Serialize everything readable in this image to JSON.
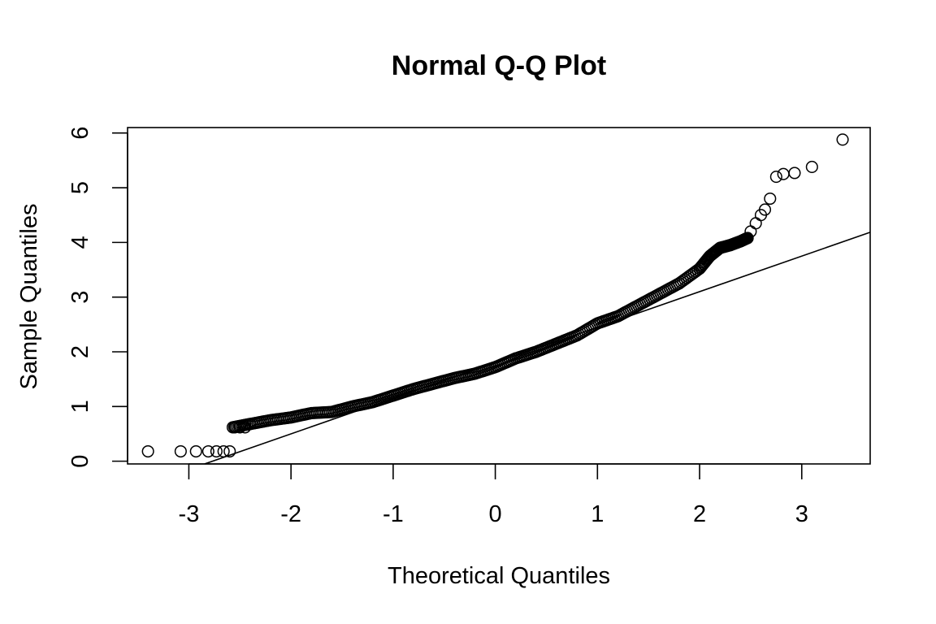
{
  "chart_data": {
    "type": "scatter",
    "title": "Normal Q-Q Plot",
    "xlabel": "Theoretical Quantiles",
    "ylabel": "Sample Quantiles",
    "xlim": [
      -3.6,
      3.67
    ],
    "ylim": [
      -0.05,
      6.1
    ],
    "xticks": [
      -3,
      -2,
      -1,
      0,
      1,
      2,
      3
    ],
    "yticks": [
      0,
      1,
      2,
      3,
      4,
      5,
      6
    ],
    "grid": false,
    "legend": "none",
    "reference_line": {
      "intercept": 1.8,
      "slope": 0.65
    },
    "quantile_curve": [
      [
        -2.57,
        0.62
      ],
      [
        -2.4,
        0.68
      ],
      [
        -2.2,
        0.75
      ],
      [
        -2.0,
        0.8
      ],
      [
        -1.8,
        0.88
      ],
      [
        -1.6,
        0.9
      ],
      [
        -1.4,
        1.0
      ],
      [
        -1.2,
        1.08
      ],
      [
        -1.0,
        1.2
      ],
      [
        -0.8,
        1.32
      ],
      [
        -0.6,
        1.42
      ],
      [
        -0.4,
        1.52
      ],
      [
        -0.2,
        1.6
      ],
      [
        0.0,
        1.72
      ],
      [
        0.2,
        1.88
      ],
      [
        0.4,
        2.0
      ],
      [
        0.6,
        2.15
      ],
      [
        0.8,
        2.3
      ],
      [
        1.0,
        2.52
      ],
      [
        1.2,
        2.65
      ],
      [
        1.4,
        2.85
      ],
      [
        1.6,
        3.05
      ],
      [
        1.8,
        3.25
      ],
      [
        2.0,
        3.52
      ],
      [
        2.1,
        3.75
      ],
      [
        2.2,
        3.9
      ],
      [
        2.3,
        3.95
      ],
      [
        2.4,
        4.02
      ],
      [
        2.47,
        4.08
      ]
    ],
    "points": [
      [
        -3.4,
        0.18
      ],
      [
        -3.08,
        0.18
      ],
      [
        -2.93,
        0.18
      ],
      [
        -2.81,
        0.18
      ],
      [
        -2.73,
        0.18
      ],
      [
        -2.66,
        0.18
      ],
      [
        -2.6,
        0.18
      ],
      [
        -2.55,
        0.62
      ],
      [
        -2.5,
        0.62
      ],
      [
        -2.45,
        0.62
      ],
      [
        2.5,
        4.2
      ],
      [
        2.55,
        4.35
      ],
      [
        2.6,
        4.5
      ],
      [
        2.64,
        4.6
      ],
      [
        2.69,
        4.8
      ],
      [
        2.75,
        5.2
      ],
      [
        2.82,
        5.25
      ],
      [
        2.93,
        5.27
      ],
      [
        3.1,
        5.38
      ],
      [
        3.4,
        5.88
      ]
    ]
  }
}
